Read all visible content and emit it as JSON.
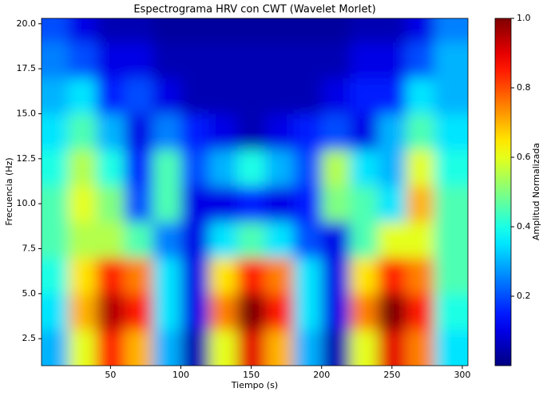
{
  "chart_data": {
    "type": "heatmap",
    "title": "Espectrograma HRV con CWT (Wavelet Morlet)",
    "x_label": "Tiempo (s)",
    "y_label": "Frecuencia (Hz)",
    "x": [
      10,
      30,
      50,
      70,
      90,
      110,
      130,
      150,
      170,
      190,
      210,
      230,
      250,
      270,
      290
    ],
    "y": [
      2,
      4,
      6,
      8,
      10,
      12,
      14,
      16,
      18,
      20
    ],
    "z": [
      [
        0.3,
        0.6,
        0.85,
        0.7,
        0.3,
        0.05,
        0.6,
        0.9,
        0.7,
        0.3,
        0.05,
        0.6,
        0.9,
        0.75,
        0.35
      ],
      [
        0.35,
        0.7,
        0.95,
        0.85,
        0.35,
        0.1,
        0.75,
        1.0,
        0.85,
        0.35,
        0.1,
        0.75,
        1.0,
        0.85,
        0.4
      ],
      [
        0.4,
        0.65,
        0.85,
        0.75,
        0.35,
        0.1,
        0.65,
        0.85,
        0.75,
        0.35,
        0.1,
        0.65,
        0.85,
        0.75,
        0.45
      ],
      [
        0.45,
        0.55,
        0.55,
        0.45,
        0.25,
        0.1,
        0.35,
        0.45,
        0.35,
        0.2,
        0.1,
        0.45,
        0.6,
        0.6,
        0.45
      ],
      [
        0.45,
        0.6,
        0.5,
        0.2,
        0.45,
        0.1,
        0.1,
        0.15,
        0.1,
        0.15,
        0.5,
        0.45,
        0.35,
        0.7,
        0.45
      ],
      [
        0.4,
        0.55,
        0.4,
        0.15,
        0.45,
        0.2,
        0.3,
        0.4,
        0.3,
        0.2,
        0.55,
        0.35,
        0.3,
        0.6,
        0.4
      ],
      [
        0.35,
        0.45,
        0.3,
        0.1,
        0.25,
        0.15,
        0.1,
        0.05,
        0.1,
        0.15,
        0.2,
        0.1,
        0.3,
        0.45,
        0.35
      ],
      [
        0.3,
        0.35,
        0.15,
        0.2,
        0.1,
        0.05,
        0.05,
        0.05,
        0.05,
        0.05,
        0.1,
        0.15,
        0.15,
        0.35,
        0.3
      ],
      [
        0.25,
        0.2,
        0.1,
        0.1,
        0.05,
        0.05,
        0.05,
        0.05,
        0.05,
        0.05,
        0.05,
        0.1,
        0.1,
        0.2,
        0.3
      ],
      [
        0.2,
        0.1,
        0.05,
        0.05,
        0.03,
        0.03,
        0.03,
        0.03,
        0.03,
        0.03,
        0.03,
        0.05,
        0.05,
        0.1,
        0.25
      ]
    ],
    "xlim": [
      1,
      304
    ],
    "ylim": [
      1,
      20.3
    ],
    "xticks": [
      50,
      100,
      150,
      200,
      250,
      300
    ],
    "yticks": [
      2.5,
      {
        "value": 5,
        "label": "5.0"
      },
      7.5,
      {
        "value": 10,
        "label": "10.0"
      },
      12.5,
      {
        "value": 15,
        "label": "15.0"
      },
      17.5,
      {
        "value": 20,
        "label": "20.0"
      }
    ],
    "colormap": "jet",
    "colorbar": {
      "label": "Amplitud Normalizada",
      "lim": [
        0,
        1
      ],
      "ticks": [
        0.2,
        0.4,
        0.6,
        0.8,
        {
          "value": 1,
          "label": "1.0"
        }
      ]
    }
  }
}
